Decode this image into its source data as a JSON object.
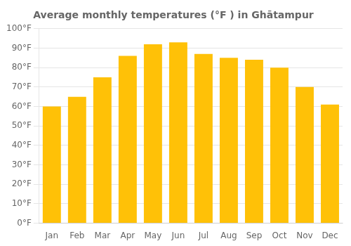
{
  "chart_data": {
    "type": "bar",
    "title": "Average monthly temperatures (°F ) in Ghātampur",
    "categories": [
      "Jan",
      "Feb",
      "Mar",
      "Apr",
      "May",
      "Jun",
      "Jul",
      "Aug",
      "Sep",
      "Oct",
      "Nov",
      "Dec"
    ],
    "values": [
      60,
      65,
      75,
      86,
      92,
      93,
      87,
      85,
      84,
      80,
      70,
      61
    ],
    "color": "#FFC107",
    "ylim": [
      0,
      100
    ],
    "yticks": [
      {
        "value": 0,
        "label": "0°F"
      },
      {
        "value": 10,
        "label": "10°F"
      },
      {
        "value": 20,
        "label": "20°F"
      },
      {
        "value": 30,
        "label": "30°F"
      },
      {
        "value": 40,
        "label": "40°F"
      },
      {
        "value": 50,
        "label": "50°F"
      },
      {
        "value": 60,
        "label": "60°F"
      },
      {
        "value": 70,
        "label": "70°F"
      },
      {
        "value": 80,
        "label": "80°F"
      },
      {
        "value": 90,
        "label": "90°F"
      },
      {
        "value": 100,
        "label": "100°F"
      }
    ],
    "grid": true
  }
}
